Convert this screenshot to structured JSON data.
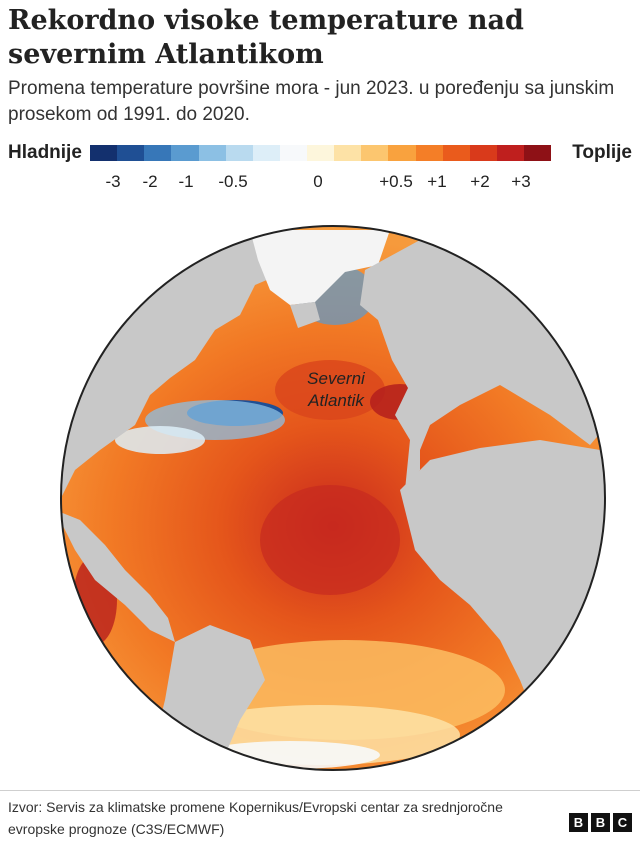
{
  "header": {
    "title": "Rekordno visoke temperature nad severnim Atlantikom",
    "subtitle": "Promena temperature površine mora - jun 2023. u poređenju sa junskim prosekom od 1991. do 2020."
  },
  "legend": {
    "cold_label": "Hladnije",
    "warm_label": "Toplije",
    "ticks": [
      "-3",
      "-2",
      "-1",
      "-0.5",
      "0",
      "+0.5",
      "+1",
      "+2",
      "+3"
    ],
    "colors": [
      "#13306e",
      "#1f4f94",
      "#3777b8",
      "#5a9bd0",
      "#8cc0e4",
      "#b9daef",
      "#ddeef8",
      "#f7f9fb",
      "#fdf6dc",
      "#fde2a6",
      "#fcc66f",
      "#f9a23e",
      "#f47e27",
      "#ea5b1c",
      "#d93a1b",
      "#bf1f1e",
      "#8e1116"
    ]
  },
  "map": {
    "label_line1": "Severni",
    "label_line2": "Atlantik",
    "land_color": "#c8c8c8",
    "ice_color": "#f4f4f4"
  },
  "footer": {
    "source": "Izvor: Servis za klimatske promene Kopernikus/Evropski centar za srednjoročne evropske prognoze (C3S/ECMWF)",
    "logo_letters": [
      "B",
      "B",
      "C"
    ]
  }
}
